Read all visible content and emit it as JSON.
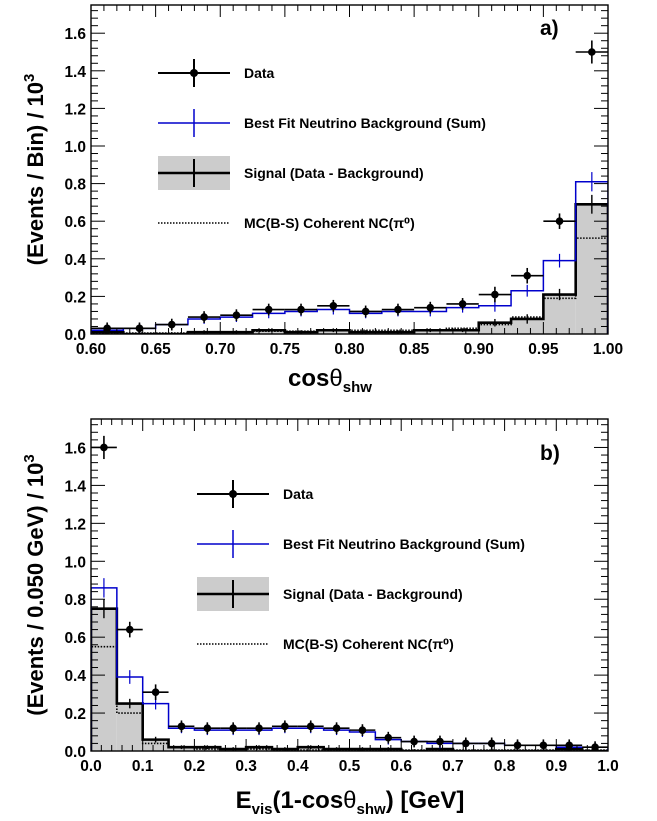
{
  "chart_data": [
    {
      "type": "bar",
      "panel_label": "a)",
      "ylabel": "(Events / Bin) / 10",
      "ylabel_exponent": "3",
      "xlabel_main": "cos",
      "xlabel_theta": "θ",
      "xlabel_sub": "shw",
      "xlim": [
        0.6,
        1.0
      ],
      "ylim": [
        0,
        1.75
      ],
      "x_ticks": [
        0.6,
        0.65,
        0.7,
        0.75,
        0.8,
        0.85,
        0.9,
        0.95,
        1.0
      ],
      "x_tick_labels": [
        "0.60",
        "0.65",
        "0.70",
        "0.75",
        "0.80",
        "0.85",
        "0.90",
        "0.95",
        "1.00"
      ],
      "y_ticks": [
        0,
        0.2,
        0.4,
        0.6,
        0.8,
        1.0,
        1.2,
        1.4,
        1.6
      ],
      "y_tick_labels": [
        "0.0",
        "0.2",
        "0.4",
        "0.6",
        "0.8",
        "1.0",
        "1.2",
        "1.4",
        "1.6"
      ],
      "bin_edges": [
        0.6,
        0.625,
        0.65,
        0.675,
        0.7,
        0.725,
        0.75,
        0.775,
        0.8,
        0.825,
        0.85,
        0.875,
        0.9,
        0.925,
        0.95,
        0.975,
        1.0
      ],
      "series": [
        {
          "name": "Data",
          "values": [
            0.03,
            0.03,
            0.05,
            0.09,
            0.1,
            0.13,
            0.13,
            0.15,
            0.12,
            0.13,
            0.14,
            0.16,
            0.21,
            0.31,
            0.6,
            1.5
          ],
          "errors": [
            0.01,
            0.01,
            0.01,
            0.01,
            0.01,
            0.01,
            0.01,
            0.01,
            0.01,
            0.01,
            0.01,
            0.01,
            0.02,
            0.02,
            0.02,
            0.04
          ]
        },
        {
          "name": "Best Fit Neutrino Background (Sum)",
          "values": [
            0.02,
            0.03,
            0.05,
            0.08,
            0.09,
            0.11,
            0.12,
            0.13,
            0.11,
            0.12,
            0.12,
            0.14,
            0.15,
            0.23,
            0.39,
            0.81
          ],
          "errors": [
            0.005,
            0.005,
            0.005,
            0.005,
            0.005,
            0.005,
            0.005,
            0.005,
            0.005,
            0.005,
            0.005,
            0.005,
            0.01,
            0.01,
            0.015,
            0.03
          ]
        },
        {
          "name": "Signal (Data - Background)",
          "values": [
            0.01,
            0.0,
            0.0,
            0.01,
            0.01,
            0.02,
            0.01,
            0.02,
            0.01,
            0.01,
            0.02,
            0.02,
            0.06,
            0.08,
            0.21,
            0.69
          ],
          "errors": [
            0.01,
            0.01,
            0.01,
            0.01,
            0.01,
            0.01,
            0.01,
            0.01,
            0.01,
            0.01,
            0.01,
            0.01,
            0.02,
            0.025,
            0.03,
            0.05
          ]
        },
        {
          "name": "MC(B-S) Coherent NC(π⁰)",
          "values": [
            0.005,
            0.005,
            0.005,
            0.01,
            0.01,
            0.015,
            0.015,
            0.02,
            0.02,
            0.02,
            0.02,
            0.03,
            0.05,
            0.09,
            0.19,
            0.51
          ]
        }
      ]
    },
    {
      "type": "bar",
      "panel_label": "b)",
      "ylabel": "(Events / 0.050 GeV) / 10",
      "ylabel_exponent": "3",
      "xlabel_main": "E",
      "xlabel_vis": "vis",
      "xlabel_mid": "(1-cos",
      "xlabel_theta": "θ",
      "xlabel_sub": "shw",
      "xlabel_end": ") [GeV]",
      "xlim": [
        0,
        1.0
      ],
      "ylim": [
        0,
        1.75
      ],
      "x_ticks": [
        0,
        0.1,
        0.2,
        0.3,
        0.4,
        0.5,
        0.6,
        0.7,
        0.8,
        0.9,
        1.0
      ],
      "x_tick_labels": [
        "0.0",
        "0.1",
        "0.2",
        "0.3",
        "0.4",
        "0.5",
        "0.6",
        "0.7",
        "0.8",
        "0.9",
        "1.0"
      ],
      "y_ticks": [
        0,
        0.2,
        0.4,
        0.6,
        0.8,
        1.0,
        1.2,
        1.4,
        1.6
      ],
      "y_tick_labels": [
        "0.0",
        "0.2",
        "0.4",
        "0.6",
        "0.8",
        "1.0",
        "1.2",
        "1.4",
        "1.6"
      ],
      "bin_edges": [
        0,
        0.05,
        0.1,
        0.15,
        0.2,
        0.25,
        0.3,
        0.35,
        0.4,
        0.45,
        0.5,
        0.55,
        0.6,
        0.65,
        0.7,
        0.75,
        0.8,
        0.85,
        0.9,
        0.95,
        1.0
      ],
      "series": [
        {
          "name": "Data",
          "values": [
            1.6,
            0.64,
            0.31,
            0.13,
            0.12,
            0.12,
            0.12,
            0.13,
            0.13,
            0.12,
            0.11,
            0.07,
            0.05,
            0.05,
            0.04,
            0.04,
            0.03,
            0.03,
            0.03,
            0.02
          ],
          "errors": [
            0.04,
            0.02,
            0.02,
            0.01,
            0.01,
            0.01,
            0.01,
            0.01,
            0.01,
            0.01,
            0.01,
            0.01,
            0.01,
            0.01,
            0.01,
            0.01,
            0.01,
            0.01,
            0.01,
            0.01
          ]
        },
        {
          "name": "Best Fit Neutrino Background (Sum)",
          "values": [
            0.86,
            0.39,
            0.25,
            0.12,
            0.11,
            0.11,
            0.11,
            0.12,
            0.12,
            0.11,
            0.1,
            0.06,
            0.05,
            0.04,
            0.04,
            0.04,
            0.03,
            0.03,
            0.02,
            0.02
          ],
          "errors": [
            0.03,
            0.015,
            0.01,
            0.005,
            0.005,
            0.005,
            0.005,
            0.005,
            0.005,
            0.005,
            0.005,
            0.005,
            0.005,
            0.005,
            0.005,
            0.005,
            0.005,
            0.005,
            0.005,
            0.005
          ]
        },
        {
          "name": "Signal (Data - Background)",
          "values": [
            0.75,
            0.25,
            0.06,
            0.02,
            0.02,
            0.01,
            0.02,
            0.01,
            0.02,
            0.01,
            0.01,
            0.01,
            0.0,
            0.01,
            0.0,
            0.0,
            0.0,
            0.0,
            0.01,
            0.0
          ],
          "errors": [
            0.05,
            0.025,
            0.015,
            0.01,
            0.01,
            0.01,
            0.01,
            0.01,
            0.01,
            0.01,
            0.01,
            0.01,
            0.01,
            0.01,
            0.01,
            0.01,
            0.01,
            0.01,
            0.01,
            0.01
          ]
        },
        {
          "name": "MC(B-S) Coherent NC(π⁰)",
          "values": [
            0.55,
            0.2,
            0.04,
            0.02,
            0.01,
            0.01,
            0.01,
            0.005,
            0.005,
            0.005,
            0.005,
            0.005,
            0.005,
            0.005,
            0.005,
            0.005,
            0.005,
            0.005,
            0.005,
            0.005
          ]
        }
      ]
    }
  ],
  "colors": {
    "data": "#000000",
    "background": "#0000cc",
    "signal_fill": "#cccccc",
    "signal_line": "#000000",
    "mc": "#000000"
  }
}
